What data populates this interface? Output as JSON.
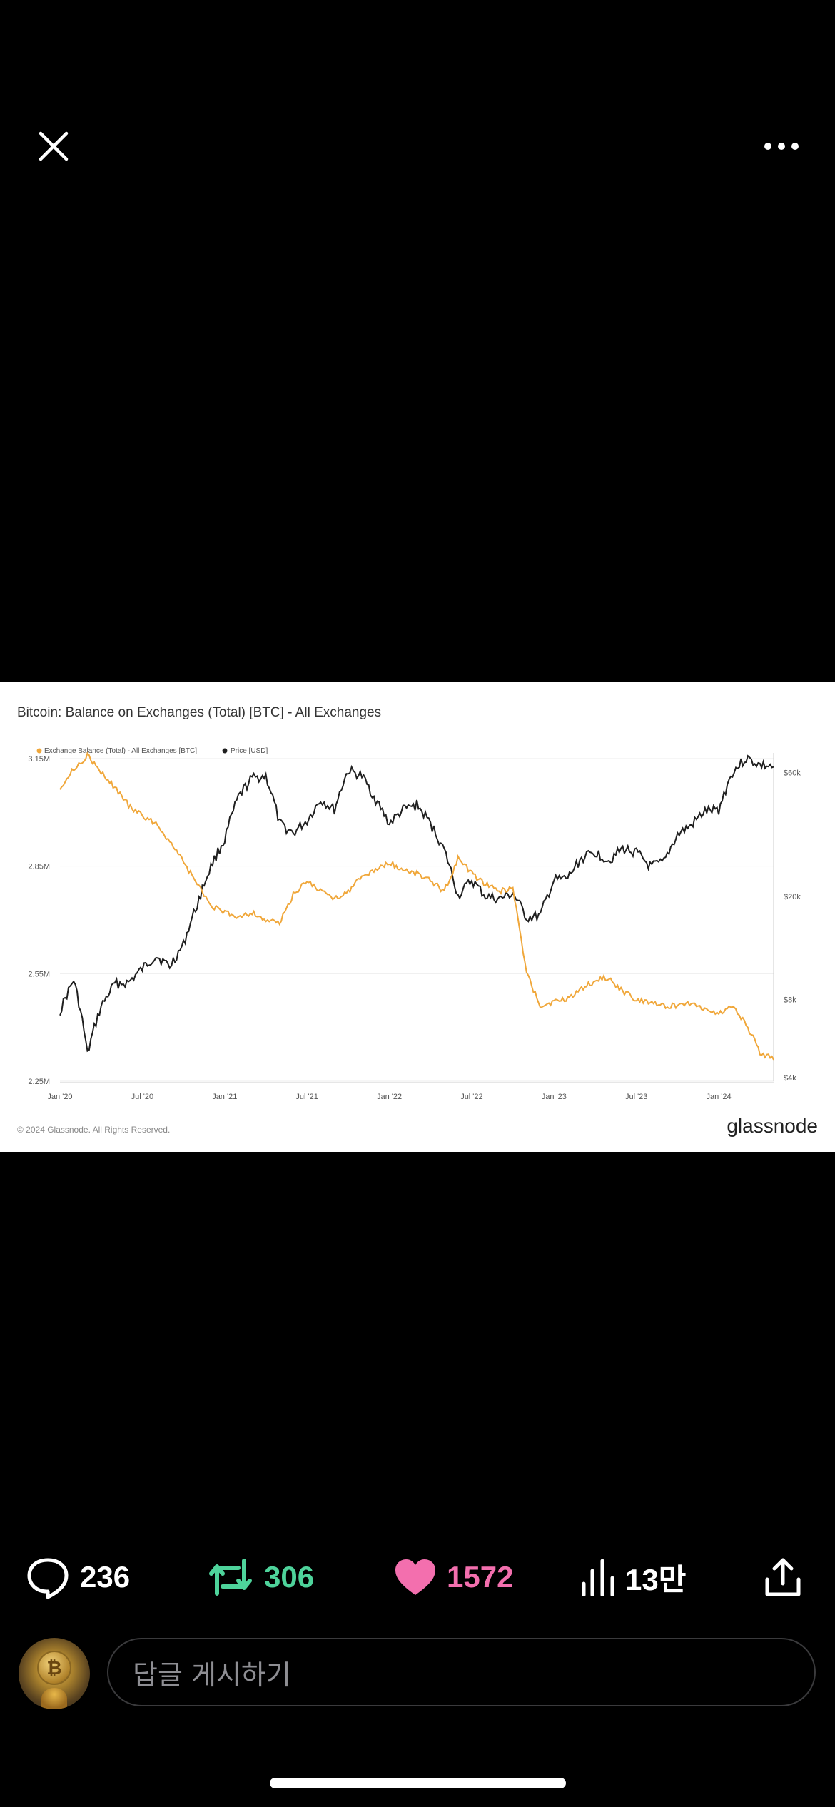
{
  "icons": {
    "close": "close-icon",
    "more": "more-horizontal-icon",
    "reply": "speech-bubble-icon",
    "repost": "repost-icon",
    "like": "heart-icon",
    "views": "bar-chart-icon",
    "share": "share-icon"
  },
  "stats": {
    "replies": "236",
    "reposts": "306",
    "likes": "1572",
    "views": "13만"
  },
  "reply_composer": {
    "placeholder": "답글 게시하기"
  },
  "colors": {
    "repost": "#4ed39b",
    "like": "#f36fae",
    "background": "#000000",
    "balance_series": "#f0a73a",
    "price_series": "#1f1f1f"
  },
  "chart_data": {
    "type": "line",
    "title": "Bitcoin: Balance on Exchanges (Total) [BTC] - All Exchanges",
    "footer": "© 2024 Glassnode. All Rights Reserved.",
    "brand": "glassnode",
    "x_ticks": [
      "Jan '20",
      "Jul '20",
      "Jan '21",
      "Jul '21",
      "Jan '22",
      "Jul '22",
      "Jan '23",
      "Jul '23",
      "Jan '24"
    ],
    "y_left_ticks": [
      "3.15M",
      "2.85M",
      "2.55M",
      "2.25M"
    ],
    "y_right_ticks": [
      "$60k",
      "$20k",
      "$8k",
      "$4k"
    ],
    "left_axis": {
      "ylim": [
        2.25,
        3.15
      ],
      "unit": "M BTC"
    },
    "right_axis": {
      "scale": "log",
      "ticks_usd": [
        4000,
        8000,
        20000,
        60000
      ]
    },
    "legend_position": "top-left",
    "series": [
      {
        "name": "Exchange Balance (Total) - All Exchanges [BTC]",
        "axis": "left",
        "x": [
          "2020-01",
          "2020-02",
          "2020-03",
          "2020-04",
          "2020-05",
          "2020-06",
          "2020-07",
          "2020-08",
          "2020-09",
          "2020-10",
          "2020-11",
          "2020-12",
          "2021-01",
          "2021-02",
          "2021-03",
          "2021-04",
          "2021-05",
          "2021-06",
          "2021-07",
          "2021-08",
          "2021-09",
          "2021-10",
          "2021-11",
          "2021-12",
          "2022-01",
          "2022-02",
          "2022-03",
          "2022-04",
          "2022-05",
          "2022-06",
          "2022-07",
          "2022-08",
          "2022-09",
          "2022-10",
          "2022-11",
          "2022-12",
          "2023-01",
          "2023-02",
          "2023-03",
          "2023-04",
          "2023-05",
          "2023-06",
          "2023-07",
          "2023-08",
          "2023-09",
          "2023-10",
          "2023-11",
          "2023-12",
          "2024-01",
          "2024-02",
          "2024-03",
          "2024-04",
          "2024-05"
        ],
        "values": [
          3.07,
          3.12,
          3.16,
          3.11,
          3.07,
          3.02,
          2.99,
          2.97,
          2.92,
          2.86,
          2.8,
          2.74,
          2.72,
          2.71,
          2.72,
          2.7,
          2.69,
          2.77,
          2.81,
          2.78,
          2.76,
          2.78,
          2.82,
          2.84,
          2.86,
          2.84,
          2.83,
          2.81,
          2.78,
          2.87,
          2.83,
          2.8,
          2.78,
          2.79,
          2.55,
          2.46,
          2.47,
          2.48,
          2.51,
          2.53,
          2.54,
          2.5,
          2.48,
          2.47,
          2.46,
          2.46,
          2.47,
          2.45,
          2.44,
          2.46,
          2.41,
          2.33,
          2.31
        ]
      },
      {
        "name": "Price [USD]",
        "axis": "right",
        "x": [
          "2020-01",
          "2020-02",
          "2020-03",
          "2020-04",
          "2020-05",
          "2020-06",
          "2020-07",
          "2020-08",
          "2020-09",
          "2020-10",
          "2020-11",
          "2020-12",
          "2021-01",
          "2021-02",
          "2021-03",
          "2021-04",
          "2021-05",
          "2021-06",
          "2021-07",
          "2021-08",
          "2021-09",
          "2021-10",
          "2021-11",
          "2021-12",
          "2022-01",
          "2022-02",
          "2022-03",
          "2022-04",
          "2022-05",
          "2022-06",
          "2022-07",
          "2022-08",
          "2022-09",
          "2022-10",
          "2022-11",
          "2022-12",
          "2023-01",
          "2023-02",
          "2023-03",
          "2023-04",
          "2023-05",
          "2023-06",
          "2023-07",
          "2023-08",
          "2023-09",
          "2023-10",
          "2023-11",
          "2023-12",
          "2024-01",
          "2024-02",
          "2024-03",
          "2024-04",
          "2024-05"
        ],
        "values": [
          7200,
          9500,
          4900,
          7500,
          9200,
          9300,
          10500,
          11800,
          10700,
          13000,
          18500,
          26000,
          33000,
          48000,
          57000,
          58000,
          38000,
          35000,
          39000,
          47000,
          43000,
          61000,
          58000,
          47000,
          38000,
          43000,
          45000,
          38000,
          30000,
          20000,
          23000,
          20000,
          19500,
          20500,
          16500,
          16800,
          23000,
          23500,
          28000,
          29500,
          27500,
          30500,
          29500,
          26000,
          27000,
          34500,
          37500,
          42500,
          43000,
          60000,
          68000,
          64000,
          63000
        ]
      }
    ]
  }
}
